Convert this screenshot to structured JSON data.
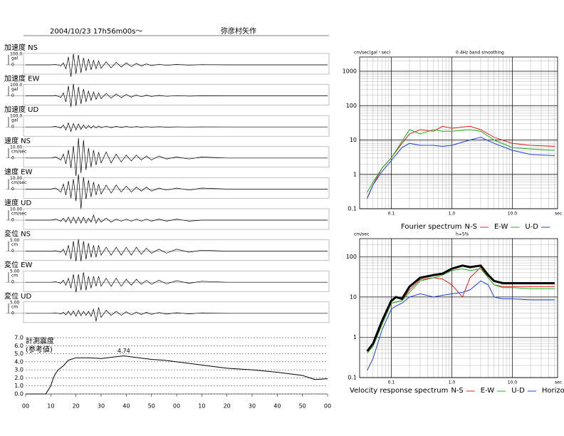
{
  "header": {
    "datetime": "2004/10/23  17h56m00s～",
    "station": "弥彦村矢作"
  },
  "chart_data": [
    {
      "type": "waveform",
      "title": "加速度 NS",
      "scale": {
        "value": 100,
        "label": "100.0"
      },
      "unit": "gal",
      "zero": 0,
      "color": "#000",
      "x": [
        0,
        10,
        12,
        14,
        15,
        16,
        17,
        18,
        19,
        20,
        21,
        22,
        23,
        24,
        25,
        26,
        27,
        28,
        29,
        30,
        32,
        34,
        36,
        38,
        40,
        42,
        44,
        46,
        48,
        50,
        53,
        56,
        60,
        65,
        70,
        80,
        120
      ],
      "values": [
        0,
        0,
        5,
        -10,
        20,
        -40,
        80,
        -120,
        110,
        -90,
        100,
        -80,
        70,
        -60,
        60,
        -50,
        45,
        -40,
        40,
        -35,
        30,
        -30,
        25,
        -22,
        20,
        -18,
        15,
        -12,
        10,
        -8,
        6,
        -5,
        4,
        -3,
        2,
        0,
        0
      ]
    },
    {
      "type": "waveform",
      "title": "加速度 EW",
      "scale": {
        "value": 100,
        "label": "100.0"
      },
      "unit": "gal",
      "zero": 0,
      "color": "#000",
      "x": [
        0,
        10,
        12,
        14,
        15,
        16,
        17,
        18,
        19,
        20,
        21,
        22,
        23,
        24,
        25,
        26,
        27,
        28,
        29,
        30,
        32,
        34,
        36,
        38,
        40,
        42,
        44,
        46,
        48,
        50,
        53,
        56,
        60,
        65,
        70,
        80,
        120
      ],
      "values": [
        0,
        0,
        5,
        -15,
        30,
        -60,
        100,
        -110,
        120,
        -100,
        90,
        -80,
        70,
        -60,
        50,
        -45,
        40,
        -35,
        30,
        -28,
        25,
        -22,
        20,
        -18,
        15,
        -12,
        10,
        -9,
        8,
        -6,
        5,
        -4,
        3,
        -2,
        1,
        0,
        0
      ]
    },
    {
      "type": "waveform",
      "title": "加速度 UD",
      "scale": {
        "value": 100,
        "label": "100.0"
      },
      "unit": "gal",
      "zero": 0,
      "color": "#000",
      "x": [
        0,
        10,
        12,
        14,
        15,
        16,
        17,
        18,
        19,
        20,
        21,
        22,
        23,
        24,
        25,
        26,
        27,
        28,
        29,
        30,
        32,
        34,
        36,
        38,
        40,
        42,
        44,
        46,
        48,
        50,
        53,
        56,
        60,
        65,
        70,
        80,
        120
      ],
      "values": [
        0,
        0,
        5,
        -10,
        20,
        -30,
        40,
        -45,
        35,
        -30,
        30,
        -25,
        20,
        -18,
        15,
        -12,
        12,
        -10,
        10,
        -8,
        8,
        -7,
        6,
        -5,
        5,
        -4,
        4,
        -3,
        3,
        -2,
        2,
        -2,
        1,
        -1,
        1,
        0,
        0
      ]
    },
    {
      "type": "waveform",
      "title": "速度 NS",
      "scale": {
        "value": 10,
        "label": "10.00"
      },
      "unit": "cm/sec",
      "zero": 0,
      "color": "#000",
      "x": [
        0,
        10,
        12,
        14,
        15,
        16,
        17,
        18,
        19,
        20,
        21,
        22,
        23,
        24,
        25,
        26,
        27,
        28,
        29,
        30,
        32,
        34,
        36,
        38,
        40,
        42,
        44,
        46,
        48,
        50,
        53,
        56,
        60,
        65,
        70,
        80,
        120
      ],
      "values": [
        0,
        0,
        1,
        -2,
        4,
        -6,
        8,
        -10,
        12,
        -18,
        20,
        -15,
        18,
        -12,
        10,
        -9,
        8,
        -7,
        6,
        -5,
        6,
        -5,
        4,
        -4,
        3,
        -3,
        3,
        -2,
        2,
        -2,
        2,
        -1,
        1,
        -1,
        1,
        0,
        0
      ]
    },
    {
      "type": "waveform",
      "title": "速度 EW",
      "scale": {
        "value": 10,
        "label": "10.00"
      },
      "unit": "cm/sec",
      "zero": 0,
      "color": "#000",
      "x": [
        0,
        10,
        12,
        14,
        15,
        16,
        17,
        18,
        19,
        20,
        21,
        22,
        23,
        24,
        25,
        26,
        27,
        28,
        29,
        30,
        32,
        34,
        36,
        38,
        40,
        42,
        44,
        46,
        48,
        50,
        53,
        56,
        60,
        65,
        70,
        80,
        120
      ],
      "values": [
        0,
        0,
        1,
        -3,
        5,
        -6,
        8,
        -9,
        10,
        -12,
        15,
        -20,
        12,
        -10,
        9,
        -8,
        7,
        -6,
        5,
        -5,
        4,
        -4,
        4,
        -3,
        3,
        -3,
        2,
        -2,
        2,
        -2,
        1,
        -1,
        1,
        -1,
        1,
        0,
        0
      ]
    },
    {
      "type": "waveform",
      "title": "速度 UD",
      "scale": {
        "value": 10,
        "label": "10.00"
      },
      "unit": "cm/sec",
      "zero": 0,
      "color": "#000",
      "x": [
        0,
        10,
        12,
        14,
        15,
        16,
        17,
        18,
        19,
        20,
        21,
        22,
        23,
        24,
        25,
        26,
        27,
        28,
        29,
        30,
        32,
        34,
        36,
        38,
        40,
        42,
        44,
        46,
        48,
        50,
        53,
        56,
        60,
        65,
        70,
        80,
        120
      ],
      "values": [
        0,
        0,
        1,
        -1,
        2,
        -2,
        3,
        -3,
        3,
        -3,
        3,
        -3,
        3,
        -3,
        2,
        -2,
        5,
        -3,
        2,
        -2,
        2,
        -2,
        1,
        -1,
        1,
        -1,
        1,
        -1,
        1,
        -1,
        1,
        -1,
        1,
        -1,
        0,
        0,
        0
      ]
    },
    {
      "type": "waveform",
      "title": "変位 NS",
      "scale": {
        "value": 5,
        "label": "5.00"
      },
      "unit": "cm",
      "zero": 0,
      "color": "#000",
      "x": [
        0,
        10,
        12,
        14,
        15,
        16,
        17,
        18,
        19,
        20,
        21,
        22,
        23,
        24,
        25,
        26,
        27,
        28,
        29,
        30,
        32,
        34,
        36,
        38,
        40,
        42,
        44,
        46,
        48,
        50,
        53,
        56,
        60,
        65,
        70,
        80,
        120
      ],
      "values": [
        0,
        0,
        0.2,
        -0.5,
        1,
        -2,
        3,
        -4,
        5,
        -5,
        6,
        -5,
        5,
        -4,
        4,
        -3,
        3,
        -3,
        3,
        -2,
        2,
        -2,
        2,
        -2,
        2,
        -2,
        2,
        -1.5,
        1.5,
        -1,
        1,
        -1,
        1,
        -0.5,
        0.5,
        0,
        0
      ]
    },
    {
      "type": "waveform",
      "title": "変位 EW",
      "scale": {
        "value": 5,
        "label": "5.00"
      },
      "unit": "cm",
      "zero": 0,
      "color": "#000",
      "x": [
        0,
        10,
        12,
        14,
        15,
        16,
        17,
        18,
        19,
        20,
        21,
        22,
        23,
        24,
        25,
        26,
        27,
        28,
        29,
        30,
        32,
        34,
        36,
        38,
        40,
        42,
        44,
        46,
        48,
        50,
        53,
        56,
        60,
        65,
        70,
        80,
        120
      ],
      "values": [
        0,
        0,
        0.2,
        -0.5,
        1,
        -1.5,
        2,
        -3,
        4,
        -5,
        4,
        -4,
        5,
        -4,
        3,
        -3,
        3,
        -2,
        3,
        -2,
        2,
        -2,
        2,
        -2,
        1.5,
        -1.5,
        1.5,
        -1,
        1,
        -1,
        1,
        -0.8,
        0.8,
        -0.5,
        0.5,
        0,
        0
      ]
    },
    {
      "type": "waveform",
      "title": "変位 UD",
      "scale": {
        "value": 5,
        "label": "5.00"
      },
      "unit": "cm",
      "zero": 0,
      "color": "#000",
      "x": [
        0,
        10,
        12,
        14,
        15,
        16,
        17,
        18,
        19,
        20,
        21,
        22,
        23,
        24,
        25,
        26,
        27,
        28,
        29,
        30,
        32,
        34,
        36,
        38,
        40,
        42,
        44,
        46,
        48,
        50,
        53,
        56,
        60,
        65,
        70,
        80,
        120
      ],
      "values": [
        0,
        0,
        0.2,
        -0.3,
        0.5,
        -0.8,
        1,
        -1,
        1.2,
        -1.5,
        1.5,
        -1.2,
        1,
        -1,
        1,
        -1.5,
        2,
        -4,
        3,
        -2,
        1.5,
        -1,
        1,
        -1,
        0.8,
        -0.8,
        0.6,
        -0.6,
        0.5,
        -0.5,
        0.4,
        -0.4,
        0.3,
        -0.3,
        0.2,
        0,
        0
      ]
    },
    {
      "type": "line",
      "title": "計測震度",
      "subtitle": "(参考値)",
      "color": "#000",
      "grid": true,
      "x": [
        0,
        8,
        10,
        11,
        12,
        13,
        15,
        17,
        20,
        25,
        30,
        35,
        39,
        45,
        50,
        55,
        60,
        70,
        80,
        90,
        100,
        110,
        115,
        120
      ],
      "values": [
        0,
        0,
        1.0,
        2.0,
        2.6,
        3.0,
        3.5,
        4.2,
        4.5,
        4.5,
        4.4,
        4.6,
        4.74,
        4.5,
        4.3,
        4.2,
        4.0,
        3.6,
        3.2,
        3.0,
        2.7,
        2.3,
        1.8,
        1.9
      ],
      "annotations": [
        {
          "x": 39,
          "y": 4.74,
          "text": "4.74"
        }
      ],
      "xlim": [
        0,
        120
      ],
      "ylim": [
        0,
        7
      ],
      "xticks": [
        {
          "value": 0,
          "label": "00"
        },
        10,
        20,
        30,
        40,
        50,
        {
          "value": 60,
          "label": "00"
        },
        {
          "value": 70,
          "label": "10"
        },
        {
          "value": 80,
          "label": "20"
        },
        {
          "value": 90,
          "label": "30"
        },
        {
          "value": 100,
          "label": "40"
        },
        {
          "value": 110,
          "label": "50"
        },
        {
          "value": 120,
          "label": "00"
        }
      ],
      "yticks": [
        {
          "value": 0,
          "label": "0.0"
        },
        {
          "value": 1,
          "label": "1.0"
        },
        {
          "value": 2,
          "label": "2.0"
        },
        {
          "value": 3,
          "label": "3.0"
        },
        {
          "value": 4,
          "label": "4.0"
        },
        {
          "value": 5,
          "label": "5.0"
        },
        {
          "value": 6,
          "label": "6.0"
        },
        {
          "value": 7,
          "label": "7.0"
        }
      ]
    },
    {
      "type": "loglog",
      "y_label": "cm/sec(gal・sec)",
      "note": "0.4Hz band smoothing",
      "x_unit": "sec",
      "legend_title": "Fourier spectrum",
      "grid": true,
      "xlim": [
        0.03,
        56
      ],
      "ylim": [
        0.1,
        2600
      ],
      "xticks": [
        0.1,
        {
          "value": 1,
          "label": "1.0"
        },
        {
          "value": 10,
          "label": "10.0"
        }
      ],
      "yticks": [
        0.1,
        1,
        10,
        100,
        1000
      ],
      "x": [
        0.04,
        0.05,
        0.07,
        0.1,
        0.15,
        0.2,
        0.3,
        0.5,
        0.7,
        1,
        2,
        3,
        5,
        10,
        20,
        50
      ],
      "series": [
        {
          "name": "N-S",
          "color": "#e02020",
          "width": 1,
          "values": [
            0.2,
            0.5,
            1.5,
            3,
            8,
            15,
            20,
            18,
            25,
            22,
            25,
            20,
            12,
            8,
            7,
            6.5
          ]
        },
        {
          "name": "E-W",
          "color": "#20b020",
          "width": 1,
          "values": [
            0.3,
            0.6,
            1.5,
            3,
            9,
            20,
            15,
            20,
            18,
            18,
            20,
            18,
            10,
            6,
            5.5,
            5
          ]
        },
        {
          "name": "U-D",
          "color": "#2040e0",
          "width": 1,
          "values": [
            0.2,
            0.5,
            1.2,
            2.5,
            6,
            8,
            7,
            7,
            6.5,
            7,
            10,
            12,
            8,
            5,
            3.8,
            3.5
          ]
        }
      ]
    },
    {
      "type": "loglog",
      "y_label": "cm/sec",
      "note": "h=5%",
      "x_unit": "sec",
      "legend_title": "Velocity response spectrum",
      "grid": true,
      "xlim": [
        0.03,
        56
      ],
      "ylim": [
        0.1,
        280
      ],
      "xticks": [
        0.1,
        {
          "value": 1,
          "label": "1.0"
        },
        {
          "value": 10,
          "label": "10.0"
        }
      ],
      "yticks": [
        0.1,
        1,
        10,
        100
      ],
      "x": [
        0.04,
        0.05,
        0.07,
        0.1,
        0.12,
        0.15,
        0.2,
        0.3,
        0.5,
        0.7,
        1,
        1.5,
        2,
        3,
        4,
        5,
        7,
        10,
        20,
        50
      ],
      "series": [
        {
          "name": "N-S",
          "color": "#e02020",
          "width": 1,
          "values": [
            0.45,
            0.7,
            2.3,
            7,
            7.5,
            8,
            15,
            27,
            30,
            28,
            20,
            10,
            30,
            55,
            30,
            20,
            18,
            18,
            18,
            18
          ]
        },
        {
          "name": "E-W",
          "color": "#20b020",
          "width": 1,
          "values": [
            0.4,
            0.6,
            2,
            7,
            7.5,
            8,
            13,
            25,
            30,
            35,
            45,
            50,
            45,
            50,
            30,
            20,
            17,
            17,
            16,
            16
          ]
        },
        {
          "name": "U-D",
          "color": "#2040e0",
          "width": 1,
          "values": [
            0.15,
            0.3,
            1.5,
            5,
            6,
            7,
            10,
            12,
            10,
            11,
            12,
            13,
            15,
            25,
            20,
            10,
            9,
            9,
            8.5,
            8.5
          ]
        },
        {
          "name": "Horizon",
          "color": "#000",
          "width": 3,
          "values": [
            0.45,
            0.7,
            2.5,
            8,
            10,
            9,
            18,
            30,
            35,
            38,
            50,
            60,
            55,
            60,
            35,
            25,
            22,
            22,
            22,
            22
          ]
        }
      ]
    }
  ]
}
